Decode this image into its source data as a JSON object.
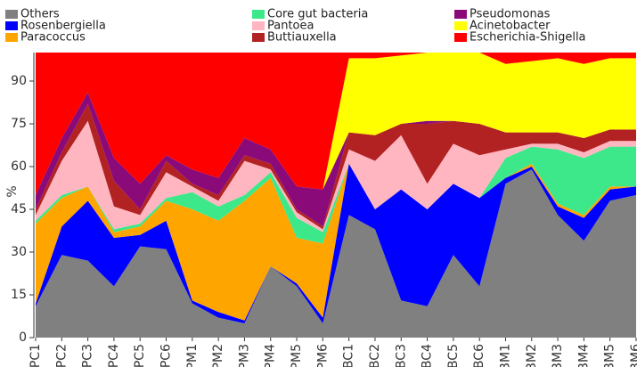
{
  "chart_data": {
    "type": "stacked_area",
    "y_label": "%",
    "categories": [
      "PC1",
      "PC2",
      "PC3",
      "PC4",
      "PC5",
      "PC6",
      "PM1",
      "PM2",
      "PM3",
      "PM4",
      "PM5",
      "PM6",
      "BC1",
      "BC2",
      "BC3",
      "BC4",
      "BC5",
      "BC6",
      "BM1",
      "BM2",
      "BM3",
      "BM4",
      "BM5",
      "BM6"
    ],
    "ylim": [
      0,
      100
    ],
    "yticks": [
      0,
      15,
      30,
      45,
      60,
      75,
      90
    ],
    "series": [
      {
        "name": "Others",
        "color": "#808080",
        "values": [
          11,
          29,
          27,
          18,
          32,
          31,
          12,
          7,
          5,
          25,
          18,
          5,
          43,
          38,
          13,
          11,
          29,
          18,
          54,
          59,
          43,
          34,
          48,
          50
        ]
      },
      {
        "name": "Rosenbergiella",
        "color": "#0000ff",
        "values": [
          1,
          10,
          21,
          17,
          4,
          10,
          1,
          2,
          1,
          0,
          1,
          2,
          18,
          7,
          39,
          34,
          25,
          31,
          2,
          1,
          3,
          8,
          4,
          3
        ]
      },
      {
        "name": "Paracoccus",
        "color": "#ffa500",
        "values": [
          28,
          10,
          5,
          2,
          3,
          7,
          32,
          32,
          42,
          31,
          16,
          26,
          0,
          0,
          0,
          0,
          0,
          0,
          0,
          1,
          1,
          1,
          1,
          0
        ]
      },
      {
        "name": "Core gut bacteria",
        "color": "#3de88a",
        "values": [
          1,
          1,
          0,
          1,
          1,
          1,
          6,
          5,
          2,
          2,
          7,
          4,
          0,
          0,
          0,
          0,
          0,
          0,
          7,
          6,
          19,
          20,
          14,
          14
        ]
      },
      {
        "name": "Pantoea",
        "color": "#ffb6c1",
        "values": [
          2,
          12,
          23,
          8,
          3,
          9,
          2,
          2,
          12,
          1,
          2,
          1,
          5,
          17,
          19,
          9,
          14,
          15,
          3,
          1,
          2,
          2,
          2,
          2
        ]
      },
      {
        "name": "Buttiauxella",
        "color": "#b22222",
        "values": [
          2,
          3,
          6,
          9,
          2,
          4,
          1,
          2,
          2,
          2,
          1,
          1,
          6,
          9,
          4,
          21,
          8,
          11,
          6,
          4,
          4,
          5,
          4,
          4
        ]
      },
      {
        "name": "Pseudomonas",
        "color": "#8b0a7a",
        "values": [
          5,
          5,
          4,
          8,
          9,
          2,
          5,
          6,
          6,
          5,
          8,
          13,
          0,
          0,
          0,
          1,
          0,
          0,
          0,
          0,
          0,
          0,
          0,
          0
        ]
      },
      {
        "name": "Acinetobacter",
        "color": "#ffff00",
        "values": [
          0,
          0,
          0,
          0,
          0,
          0,
          0,
          0,
          0,
          0,
          0,
          0,
          26,
          27,
          24,
          24,
          24,
          25,
          24,
          25,
          26,
          26,
          25,
          25
        ]
      },
      {
        "name": "Escherichia-Shigella",
        "color": "#ff0000",
        "values": [
          50,
          30,
          14,
          37,
          46,
          36,
          41,
          44,
          30,
          34,
          47,
          48,
          2,
          2,
          1,
          0,
          0,
          0,
          4,
          3,
          2,
          4,
          2,
          2
        ]
      }
    ]
  }
}
